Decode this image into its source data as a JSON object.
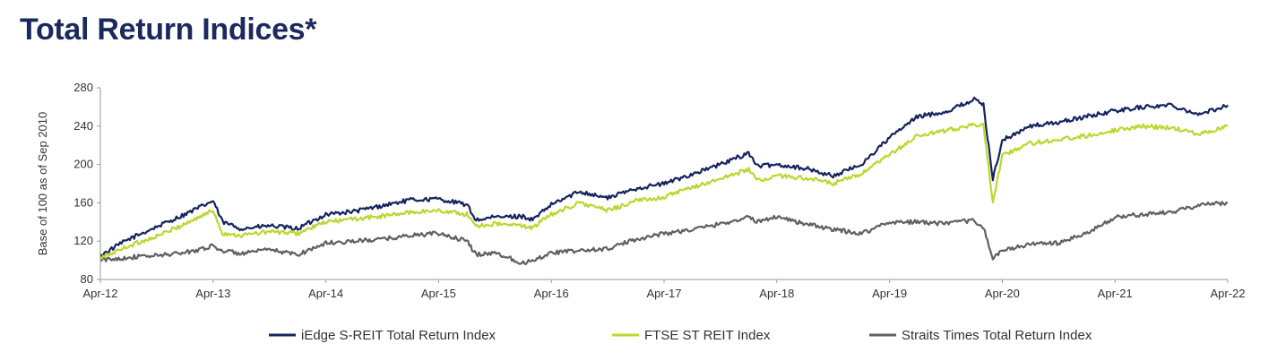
{
  "page": {
    "title": "Total Return Indices*"
  },
  "chart_data": {
    "type": "line",
    "title": "",
    "ylabel": "Base of 100 as of Sep 2010",
    "xlabel": "",
    "ylim": [
      80,
      280
    ],
    "yticks": [
      80,
      120,
      160,
      200,
      240,
      280
    ],
    "xlim": [
      "2012-04",
      "2022-04"
    ],
    "xticks": [
      "Apr-12",
      "Apr-13",
      "Apr-14",
      "Apr-15",
      "Apr-16",
      "Apr-17",
      "Apr-18",
      "Apr-19",
      "Apr-20",
      "Apr-21",
      "Apr-22"
    ],
    "grid": false,
    "legend_position": "bottom",
    "x": [
      "2012-04",
      "2012-07",
      "2012-10",
      "2013-01",
      "2013-04",
      "2013-05",
      "2013-07",
      "2013-10",
      "2014-01",
      "2014-04",
      "2014-07",
      "2014-10",
      "2015-01",
      "2015-04",
      "2015-07",
      "2015-08",
      "2015-10",
      "2016-01",
      "2016-02",
      "2016-04",
      "2016-07",
      "2016-10",
      "2017-01",
      "2017-04",
      "2017-07",
      "2017-10",
      "2018-01",
      "2018-02",
      "2018-04",
      "2018-07",
      "2018-10",
      "2019-01",
      "2019-04",
      "2019-07",
      "2019-10",
      "2020-01",
      "2020-02",
      "2020-03",
      "2020-04",
      "2020-07",
      "2020-10",
      "2021-01",
      "2021-04",
      "2021-07",
      "2021-10",
      "2022-01",
      "2022-04"
    ],
    "series": [
      {
        "name": "iEdge S-REIT Total Return Index",
        "color": "#14245e",
        "values": [
          105,
          122,
          135,
          148,
          162,
          140,
          133,
          136,
          133,
          148,
          151,
          157,
          163,
          164,
          158,
          142,
          145,
          146,
          142,
          158,
          172,
          165,
          175,
          180,
          190,
          200,
          212,
          198,
          200,
          196,
          188,
          200,
          228,
          250,
          255,
          268,
          262,
          185,
          225,
          240,
          244,
          250,
          256,
          260,
          262,
          252,
          262
        ]
      },
      {
        "name": "FTSE ST REIT Index",
        "color": "#bcd630",
        "values": [
          102,
          115,
          125,
          138,
          152,
          128,
          126,
          130,
          128,
          140,
          143,
          146,
          150,
          152,
          148,
          136,
          138,
          136,
          134,
          148,
          160,
          152,
          162,
          166,
          176,
          185,
          195,
          183,
          188,
          186,
          180,
          190,
          210,
          230,
          235,
          242,
          240,
          160,
          210,
          222,
          226,
          230,
          236,
          240,
          238,
          232,
          240
        ]
      },
      {
        "name": "Straits Times Total Return Index",
        "color": "#606060",
        "values": [
          100,
          103,
          105,
          108,
          115,
          110,
          107,
          111,
          106,
          118,
          120,
          122,
          126,
          128,
          120,
          106,
          108,
          97,
          100,
          108,
          110,
          112,
          122,
          128,
          132,
          138,
          145,
          140,
          146,
          138,
          132,
          128,
          140,
          140,
          138,
          142,
          134,
          102,
          110,
          117,
          118,
          128,
          145,
          148,
          150,
          158,
          160
        ]
      }
    ]
  }
}
